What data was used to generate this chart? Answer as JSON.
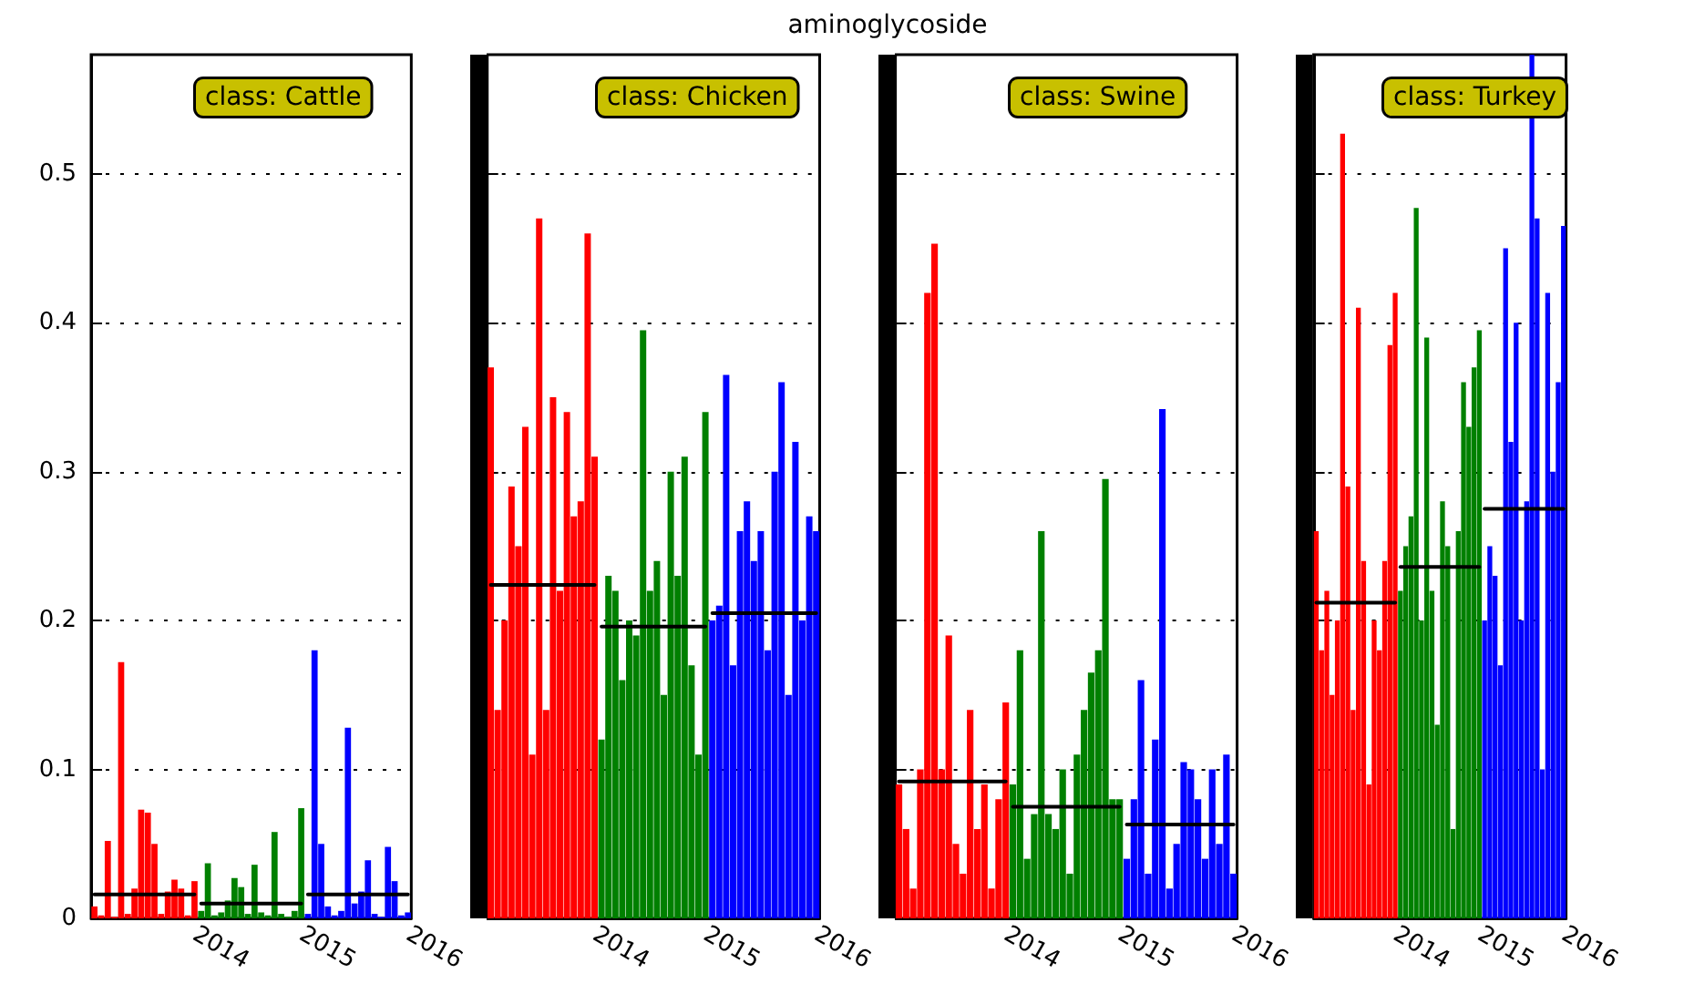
{
  "chart_data": [
    {
      "type": "bar",
      "annotations": [
        "class: Cattle"
      ],
      "ylim": [
        0,
        0.58
      ],
      "yticks": [
        0,
        0.1,
        0.2,
        0.3,
        0.4,
        0.5
      ],
      "grid": "y",
      "categories": [
        null,
        null,
        null,
        null,
        null,
        null,
        null,
        null,
        null,
        null,
        null,
        null,
        null,
        null,
        null,
        "2014",
        null,
        null,
        null,
        null,
        null,
        null,
        null,
        null,
        null,
        null,
        null,
        null,
        null,
        null,
        null,
        "2015",
        null,
        null,
        null,
        null,
        null,
        null,
        null,
        null,
        null,
        null,
        null,
        null,
        null,
        null,
        null,
        "2016"
      ],
      "series": [
        {
          "type": "bar",
          "color": "#ff0000",
          "values": [
            0.008,
            0.002,
            0.052,
            0.001,
            0.172,
            0.003,
            0.02,
            0.073,
            0.071,
            0.05,
            0.003,
            0.018,
            0.026,
            0.02,
            0.002,
            0.025,
            null,
            null,
            null,
            null,
            null,
            null,
            null,
            null,
            null,
            null,
            null,
            null,
            null,
            null,
            null,
            null,
            null,
            null,
            null,
            null,
            null,
            null,
            null,
            null,
            null,
            null,
            null,
            null,
            null,
            null,
            null,
            null
          ]
        },
        {
          "type": "bar",
          "color": "#008000",
          "values": [
            null,
            null,
            null,
            null,
            null,
            null,
            null,
            null,
            null,
            null,
            null,
            null,
            null,
            null,
            null,
            null,
            0.005,
            0.037,
            0.002,
            0.004,
            0.012,
            0.027,
            0.021,
            0.003,
            0.036,
            0.004,
            0.002,
            0.058,
            0.003,
            0.001,
            0.005,
            0.074,
            null,
            null,
            null,
            null,
            null,
            null,
            null,
            null,
            null,
            null,
            null,
            null,
            null,
            null,
            null,
            null
          ]
        },
        {
          "type": "bar",
          "color": "#0000ff",
          "values": [
            null,
            null,
            null,
            null,
            null,
            null,
            null,
            null,
            null,
            null,
            null,
            null,
            null,
            null,
            null,
            null,
            null,
            null,
            null,
            null,
            null,
            null,
            null,
            null,
            null,
            null,
            null,
            null,
            null,
            null,
            null,
            null,
            0.003,
            0.18,
            0.05,
            0.008,
            0.002,
            0.005,
            0.128,
            0.01,
            0.018,
            0.039,
            0.003,
            0.001,
            0.048,
            0.025,
            0.002,
            0.004
          ]
        },
        {
          "type": "line",
          "color": "#000000",
          "values": [
            0.016,
            0.016,
            0.016,
            0.016,
            0.016,
            0.016,
            0.016,
            0.016,
            0.016,
            0.016,
            0.016,
            0.016,
            0.016,
            0.016,
            0.016,
            0.016,
            null,
            null,
            null,
            null,
            null,
            null,
            null,
            null,
            null,
            null,
            null,
            null,
            null,
            null,
            null,
            null,
            null,
            null,
            null,
            null,
            null,
            null,
            null,
            null,
            null,
            null,
            null,
            null,
            null,
            null,
            null,
            null
          ]
        },
        {
          "type": "line",
          "color": "#000000",
          "values": [
            null,
            null,
            null,
            null,
            null,
            null,
            null,
            null,
            null,
            null,
            null,
            null,
            null,
            null,
            null,
            null,
            0.01,
            0.01,
            0.01,
            0.01,
            0.01,
            0.01,
            0.01,
            0.01,
            0.01,
            0.01,
            0.01,
            0.01,
            0.01,
            0.01,
            0.01,
            0.01,
            null,
            null,
            null,
            null,
            null,
            null,
            null,
            null,
            null,
            null,
            null,
            null,
            null,
            null,
            null,
            null
          ]
        },
        {
          "type": "line",
          "color": "#000000",
          "values": [
            null,
            null,
            null,
            null,
            null,
            null,
            null,
            null,
            null,
            null,
            null,
            null,
            null,
            null,
            null,
            null,
            null,
            null,
            null,
            null,
            null,
            null,
            null,
            null,
            null,
            null,
            null,
            null,
            null,
            null,
            null,
            null,
            0.016,
            0.016,
            0.016,
            0.016,
            0.016,
            0.016,
            0.016,
            0.016,
            0.016,
            0.016,
            0.016,
            0.016,
            0.016,
            0.016,
            0.016,
            0.016
          ]
        }
      ]
    },
    {
      "type": "bar",
      "title": "aminoglycoside",
      "annotations": [
        "class: Chicken"
      ],
      "ylim": [
        0,
        0.58
      ],
      "yticks": [
        0,
        0.1,
        0.2,
        0.3,
        0.4,
        0.5
      ],
      "grid": "y",
      "tick_labels": "x",
      "categories": [
        null,
        null,
        null,
        null,
        null,
        null,
        null,
        null,
        null,
        null,
        null,
        null,
        null,
        null,
        null,
        "2014",
        null,
        null,
        null,
        null,
        null,
        null,
        null,
        null,
        null,
        null,
        null,
        null,
        null,
        null,
        null,
        "2015",
        null,
        null,
        null,
        null,
        null,
        null,
        null,
        null,
        null,
        null,
        null,
        null,
        null,
        null,
        null,
        "2016"
      ],
      "series": [
        {
          "type": "bar",
          "color": "#ff0000",
          "values": [
            0.37,
            0.14,
            0.2,
            0.29,
            0.25,
            0.33,
            0.11,
            0.47,
            0.14,
            0.35,
            0.22,
            0.34,
            0.27,
            0.28,
            0.46,
            0.31,
            null,
            null,
            null,
            null,
            null,
            null,
            null,
            null,
            null,
            null,
            null,
            null,
            null,
            null,
            null,
            null,
            null,
            null,
            null,
            null,
            null,
            null,
            null,
            null,
            null,
            null,
            null,
            null,
            null,
            null,
            null,
            null
          ]
        },
        {
          "type": "bar",
          "color": "#008000",
          "values": [
            null,
            null,
            null,
            null,
            null,
            null,
            null,
            null,
            null,
            null,
            null,
            null,
            null,
            null,
            null,
            null,
            0.12,
            0.23,
            0.22,
            0.16,
            0.2,
            0.19,
            0.395,
            0.22,
            0.24,
            0.15,
            0.3,
            0.23,
            0.31,
            0.17,
            0.11,
            0.34,
            null,
            null,
            null,
            null,
            null,
            null,
            null,
            null,
            null,
            null,
            null,
            null,
            null,
            null,
            null,
            null
          ]
        },
        {
          "type": "bar",
          "color": "#0000ff",
          "values": [
            null,
            null,
            null,
            null,
            null,
            null,
            null,
            null,
            null,
            null,
            null,
            null,
            null,
            null,
            null,
            null,
            null,
            null,
            null,
            null,
            null,
            null,
            null,
            null,
            null,
            null,
            null,
            null,
            null,
            null,
            null,
            null,
            0.2,
            0.21,
            0.365,
            0.17,
            0.26,
            0.28,
            0.24,
            0.26,
            0.18,
            0.3,
            0.36,
            0.15,
            0.32,
            0.2,
            0.27,
            0.26
          ]
        },
        {
          "type": "line",
          "color": "#000000",
          "values": [
            0.224,
            0.224,
            0.224,
            0.224,
            0.224,
            0.224,
            0.224,
            0.224,
            0.224,
            0.224,
            0.224,
            0.224,
            0.224,
            0.224,
            0.224,
            0.224,
            null,
            null,
            null,
            null,
            null,
            null,
            null,
            null,
            null,
            null,
            null,
            null,
            null,
            null,
            null,
            null,
            null,
            null,
            null,
            null,
            null,
            null,
            null,
            null,
            null,
            null,
            null,
            null,
            null,
            null,
            null,
            null
          ]
        },
        {
          "type": "line",
          "color": "#000000",
          "values": [
            null,
            null,
            null,
            null,
            null,
            null,
            null,
            null,
            null,
            null,
            null,
            null,
            null,
            null,
            null,
            null,
            0.196,
            0.196,
            0.196,
            0.196,
            0.196,
            0.196,
            0.196,
            0.196,
            0.196,
            0.196,
            0.196,
            0.196,
            0.196,
            0.196,
            0.196,
            0.196,
            null,
            null,
            null,
            null,
            null,
            null,
            null,
            null,
            null,
            null,
            null,
            null,
            null,
            null,
            null,
            null
          ]
        },
        {
          "type": "line",
          "color": "#000000",
          "values": [
            null,
            null,
            null,
            null,
            null,
            null,
            null,
            null,
            null,
            null,
            null,
            null,
            null,
            null,
            null,
            null,
            null,
            null,
            null,
            null,
            null,
            null,
            null,
            null,
            null,
            null,
            null,
            null,
            null,
            null,
            null,
            null,
            0.205,
            0.205,
            0.205,
            0.205,
            0.205,
            0.205,
            0.205,
            0.205,
            0.205,
            0.205,
            0.205,
            0.205,
            0.205,
            0.205,
            0.205,
            0.205
          ]
        }
      ]
    },
    {
      "type": "bar",
      "annotations": [
        "class: Swine"
      ],
      "ylim": [
        0,
        0.58
      ],
      "yticks": [
        0,
        0.1,
        0.2,
        0.3,
        0.4,
        0.5
      ],
      "grid": "y",
      "tick_labels": "x",
      "categories": [
        null,
        null,
        null,
        null,
        null,
        null,
        null,
        null,
        null,
        null,
        null,
        null,
        null,
        null,
        null,
        "2014",
        null,
        null,
        null,
        null,
        null,
        null,
        null,
        null,
        null,
        null,
        null,
        null,
        null,
        null,
        null,
        "2015",
        null,
        null,
        null,
        null,
        null,
        null,
        null,
        null,
        null,
        null,
        null,
        null,
        null,
        null,
        null,
        "2016"
      ],
      "series": [
        {
          "type": "bar",
          "color": "#ff0000",
          "values": [
            0.09,
            0.06,
            0.02,
            0.1,
            0.42,
            0.453,
            0.1,
            0.19,
            0.05,
            0.03,
            0.14,
            0.06,
            0.09,
            0.02,
            0.08,
            0.145,
            null,
            null,
            null,
            null,
            null,
            null,
            null,
            null,
            null,
            null,
            null,
            null,
            null,
            null,
            null,
            null,
            null,
            null,
            null,
            null,
            null,
            null,
            null,
            null,
            null,
            null,
            null,
            null,
            null,
            null,
            null,
            null
          ]
        },
        {
          "type": "bar",
          "color": "#008000",
          "values": [
            null,
            null,
            null,
            null,
            null,
            null,
            null,
            null,
            null,
            null,
            null,
            null,
            null,
            null,
            null,
            null,
            0.09,
            0.18,
            0.04,
            0.07,
            0.26,
            0.07,
            0.06,
            0.1,
            0.03,
            0.11,
            0.14,
            0.165,
            0.18,
            0.295,
            0.08,
            0.08,
            null,
            null,
            null,
            null,
            null,
            null,
            null,
            null,
            null,
            null,
            null,
            null,
            null,
            null,
            null,
            null
          ]
        },
        {
          "type": "bar",
          "color": "#0000ff",
          "values": [
            null,
            null,
            null,
            null,
            null,
            null,
            null,
            null,
            null,
            null,
            null,
            null,
            null,
            null,
            null,
            null,
            null,
            null,
            null,
            null,
            null,
            null,
            null,
            null,
            null,
            null,
            null,
            null,
            null,
            null,
            null,
            null,
            0.04,
            0.08,
            0.16,
            0.03,
            0.12,
            0.342,
            0.02,
            0.05,
            0.105,
            0.1,
            0.08,
            0.04,
            0.1,
            0.05,
            0.11,
            0.03
          ]
        },
        {
          "type": "line",
          "color": "#000000",
          "values": [
            0.092,
            0.092,
            0.092,
            0.092,
            0.092,
            0.092,
            0.092,
            0.092,
            0.092,
            0.092,
            0.092,
            0.092,
            0.092,
            0.092,
            0.092,
            0.092,
            null,
            null,
            null,
            null,
            null,
            null,
            null,
            null,
            null,
            null,
            null,
            null,
            null,
            null,
            null,
            null,
            null,
            null,
            null,
            null,
            null,
            null,
            null,
            null,
            null,
            null,
            null,
            null,
            null,
            null,
            null,
            null
          ]
        },
        {
          "type": "line",
          "color": "#000000",
          "values": [
            null,
            null,
            null,
            null,
            null,
            null,
            null,
            null,
            null,
            null,
            null,
            null,
            null,
            null,
            null,
            null,
            0.075,
            0.075,
            0.075,
            0.075,
            0.075,
            0.075,
            0.075,
            0.075,
            0.075,
            0.075,
            0.075,
            0.075,
            0.075,
            0.075,
            0.075,
            0.075,
            null,
            null,
            null,
            null,
            null,
            null,
            null,
            null,
            null,
            null,
            null,
            null,
            null,
            null,
            null,
            null
          ]
        },
        {
          "type": "line",
          "color": "#000000",
          "values": [
            null,
            null,
            null,
            null,
            null,
            null,
            null,
            null,
            null,
            null,
            null,
            null,
            null,
            null,
            null,
            null,
            null,
            null,
            null,
            null,
            null,
            null,
            null,
            null,
            null,
            null,
            null,
            null,
            null,
            null,
            null,
            null,
            0.063,
            0.063,
            0.063,
            0.063,
            0.063,
            0.063,
            0.063,
            0.063,
            0.063,
            0.063,
            0.063,
            0.063,
            0.063,
            0.063,
            0.063,
            0.063
          ]
        }
      ]
    },
    {
      "type": "bar",
      "annotations": [
        "class: Turkey"
      ],
      "ylim": [
        0,
        0.58
      ],
      "yticks": [
        0,
        0.1,
        0.2,
        0.3,
        0.4,
        0.5
      ],
      "grid": "y",
      "tick_labels": "x",
      "categories": [
        null,
        null,
        null,
        null,
        null,
        null,
        null,
        null,
        null,
        null,
        null,
        null,
        null,
        null,
        null,
        "2014",
        null,
        null,
        null,
        null,
        null,
        null,
        null,
        null,
        null,
        null,
        null,
        null,
        null,
        null,
        null,
        "2015",
        null,
        null,
        null,
        null,
        null,
        null,
        null,
        null,
        null,
        null,
        null,
        null,
        null,
        null,
        null,
        "2016"
      ],
      "series": [
        {
          "type": "bar",
          "color": "#ff0000",
          "values": [
            0.26,
            0.18,
            0.22,
            0.15,
            0.2,
            0.527,
            0.29,
            0.14,
            0.41,
            0.24,
            0.09,
            0.2,
            0.18,
            0.24,
            0.385,
            0.42,
            null,
            null,
            null,
            null,
            null,
            null,
            null,
            null,
            null,
            null,
            null,
            null,
            null,
            null,
            null,
            null,
            null,
            null,
            null,
            null,
            null,
            null,
            null,
            null,
            null,
            null,
            null,
            null,
            null,
            null,
            null,
            null
          ]
        },
        {
          "type": "bar",
          "color": "#008000",
          "values": [
            null,
            null,
            null,
            null,
            null,
            null,
            null,
            null,
            null,
            null,
            null,
            null,
            null,
            null,
            null,
            null,
            0.22,
            0.25,
            0.27,
            0.477,
            0.2,
            0.39,
            0.22,
            0.13,
            0.28,
            0.25,
            0.06,
            0.26,
            0.36,
            0.33,
            0.37,
            0.395,
            null,
            null,
            null,
            null,
            null,
            null,
            null,
            null,
            null,
            null,
            null,
            null,
            null,
            null,
            null,
            null
          ]
        },
        {
          "type": "bar",
          "color": "#0000ff",
          "values": [
            null,
            null,
            null,
            null,
            null,
            null,
            null,
            null,
            null,
            null,
            null,
            null,
            null,
            null,
            null,
            null,
            null,
            null,
            null,
            null,
            null,
            null,
            null,
            null,
            null,
            null,
            null,
            null,
            null,
            null,
            null,
            null,
            0.2,
            0.25,
            0.23,
            0.17,
            0.45,
            0.32,
            0.4,
            0.2,
            0.28,
            0.58,
            0.47,
            0.1,
            0.42,
            0.3,
            0.36,
            0.465
          ]
        },
        {
          "type": "line",
          "color": "#000000",
          "values": [
            0.212,
            0.212,
            0.212,
            0.212,
            0.212,
            0.212,
            0.212,
            0.212,
            0.212,
            0.212,
            0.212,
            0.212,
            0.212,
            0.212,
            0.212,
            0.212,
            null,
            null,
            null,
            null,
            null,
            null,
            null,
            null,
            null,
            null,
            null,
            null,
            null,
            null,
            null,
            null,
            null,
            null,
            null,
            null,
            null,
            null,
            null,
            null,
            null,
            null,
            null,
            null,
            null,
            null,
            null,
            null
          ]
        },
        {
          "type": "line",
          "color": "#000000",
          "values": [
            null,
            null,
            null,
            null,
            null,
            null,
            null,
            null,
            null,
            null,
            null,
            null,
            null,
            null,
            null,
            null,
            0.236,
            0.236,
            0.236,
            0.236,
            0.236,
            0.236,
            0.236,
            0.236,
            0.236,
            0.236,
            0.236,
            0.236,
            0.236,
            0.236,
            0.236,
            0.236,
            null,
            null,
            null,
            null,
            null,
            null,
            null,
            null,
            null,
            null,
            null,
            null,
            null,
            null,
            null,
            null
          ]
        },
        {
          "type": "line",
          "color": "#000000",
          "values": [
            null,
            null,
            null,
            null,
            null,
            null,
            null,
            null,
            null,
            null,
            null,
            null,
            null,
            null,
            null,
            null,
            null,
            null,
            null,
            null,
            null,
            null,
            null,
            null,
            null,
            null,
            null,
            null,
            null,
            null,
            null,
            null,
            0.275,
            0.275,
            0.275,
            0.275,
            0.275,
            0.275,
            0.275,
            0.275,
            0.275,
            0.275,
            0.275,
            0.275,
            0.275,
            0.275,
            0.275,
            0.275
          ]
        }
      ]
    }
  ]
}
